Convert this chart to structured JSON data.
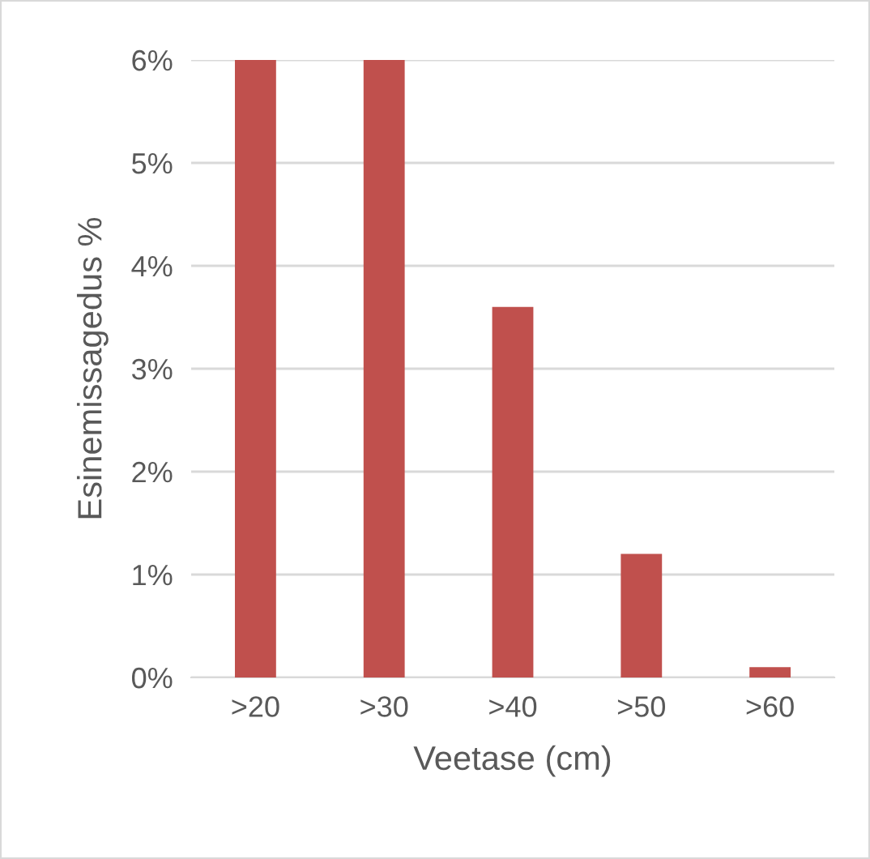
{
  "chart_data": {
    "type": "bar",
    "xlabel": "Veetase (cm)",
    "ylabel": "Esinemissagedus %",
    "categories": [
      ">20",
      ">30",
      ">40",
      ">50",
      ">60"
    ],
    "values": [
      6,
      6,
      3.6,
      1.2,
      0.1
    ],
    "color": "#c0504d",
    "ylim": [
      0,
      6
    ],
    "yticks": [
      {
        "value": 0,
        "label": "0%"
      },
      {
        "value": 1,
        "label": "1%"
      },
      {
        "value": 2,
        "label": "2%"
      },
      {
        "value": 3,
        "label": "3%"
      },
      {
        "value": 4,
        "label": "4%"
      },
      {
        "value": 5,
        "label": "5%"
      },
      {
        "value": 6,
        "label": "6%"
      }
    ],
    "grid": "y",
    "legend": false
  }
}
